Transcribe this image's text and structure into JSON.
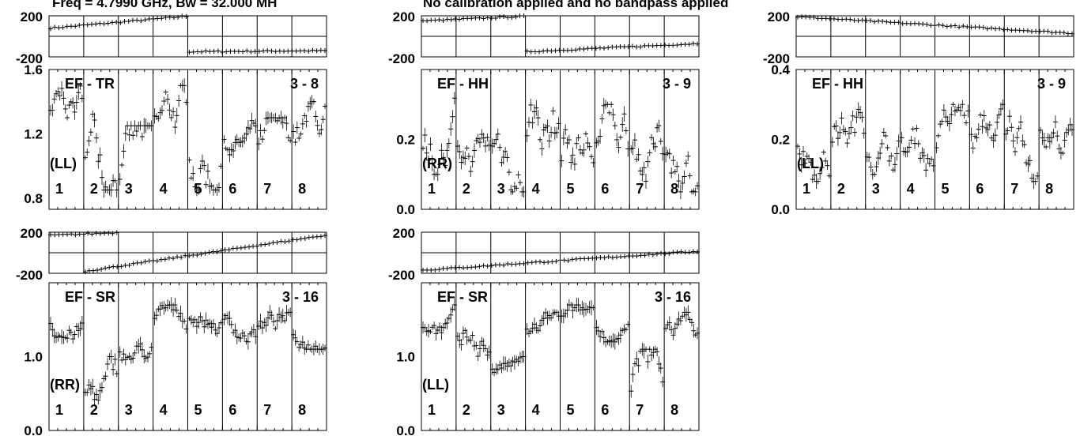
{
  "header": {
    "freq_text": "Freq = 4.7990 GHz, Bw = 32.000 MH",
    "calib_text": "No calibration applied and no bandpass applied"
  },
  "colors": {
    "ink": "#000000",
    "background": "#ffffff"
  },
  "chart_data": [
    {
      "type": "scatter",
      "baseline_label": "EF - TR",
      "baseline_id": "3 - 8",
      "polarization": "(LL)",
      "ir_labels": [
        "1",
        "2",
        "3",
        "4",
        "5",
        "6",
        "7",
        "8"
      ],
      "phase": {
        "yticks": [
          "200",
          "-200"
        ],
        "ylim": [
          -200,
          200
        ],
        "segments": [
          {
            "ir": [
              1,
              4
            ],
            "start": 80,
            "end": 195
          },
          {
            "ir": [
              5,
              8
            ],
            "start": -150,
            "end": -140
          }
        ]
      },
      "amp": {
        "yticks": [
          "1.6",
          "1.2",
          "0.8"
        ],
        "tick_values": [
          1.6,
          1.2,
          0.8
        ],
        "ylim": [
          0.73,
          1.6
        ],
        "ir_ranges": [
          [
            1.15,
            1.5
          ],
          [
            0.85,
            1.5
          ],
          [
            0.75,
            1.25
          ],
          [
            1.0,
            1.5
          ],
          [
            0.85,
            1.45
          ],
          [
            1.05,
            1.3
          ],
          [
            0.9,
            1.3
          ],
          [
            0.95,
            1.4
          ]
        ]
      }
    },
    {
      "type": "scatter",
      "baseline_label": "EF - HH",
      "baseline_id": "3 - 9",
      "polarization": "(RR)",
      "ir_labels": [
        "1",
        "2",
        "3",
        "4",
        "5",
        "6",
        "7",
        "8"
      ],
      "phase": {
        "yticks": [
          "200",
          "-200"
        ],
        "ylim": [
          -200,
          200
        ],
        "segments": [
          {
            "ir": [
              1,
              3
            ],
            "start": 150,
            "end": 195
          },
          {
            "ir": [
              4,
              8
            ],
            "start": -150,
            "end": -70
          }
        ]
      },
      "amp": {
        "yticks": [
          "0.2",
          "0.0"
        ],
        "tick_values": [
          0.2,
          0.0
        ],
        "ylim": [
          0.0,
          0.4
        ],
        "ir_ranges": [
          [
            0.1,
            0.35
          ],
          [
            0.1,
            0.3
          ],
          [
            0.05,
            0.3
          ],
          [
            0.05,
            0.35
          ],
          [
            0.05,
            0.35
          ],
          [
            0.05,
            0.3
          ],
          [
            0.05,
            0.3
          ],
          [
            0.05,
            0.3
          ]
        ]
      }
    },
    {
      "type": "scatter",
      "baseline_label": "EF - HH",
      "baseline_id": "3 - 9",
      "polarization": "(LL)",
      "ir_labels": [
        "1",
        "2",
        "3",
        "4",
        "5",
        "6",
        "7",
        "8"
      ],
      "phase": {
        "yticks": [
          "200",
          "-200"
        ],
        "ylim": [
          -200,
          200
        ],
        "segments": [
          {
            "ir": [
              1,
              8
            ],
            "start": 190,
            "end": 30
          }
        ]
      },
      "amp": {
        "yticks": [
          "0.4",
          "0.2",
          "0.0"
        ],
        "tick_values": [
          0.4,
          0.2,
          0.0
        ],
        "ylim": [
          0.0,
          0.4
        ],
        "ir_ranges": [
          [
            0.08,
            0.3
          ],
          [
            0.12,
            0.33
          ],
          [
            0.1,
            0.28
          ],
          [
            0.1,
            0.3
          ],
          [
            0.12,
            0.3
          ],
          [
            0.1,
            0.3
          ],
          [
            0.08,
            0.32
          ],
          [
            0.1,
            0.28
          ]
        ]
      }
    },
    {
      "type": "scatter",
      "baseline_label": "EF - SR",
      "baseline_id": "3 - 16",
      "polarization": "(RR)",
      "ir_labels": [
        "1",
        "2",
        "3",
        "4",
        "5",
        "6",
        "7",
        "8"
      ],
      "phase": {
        "yticks": [
          "200",
          "-200"
        ],
        "ylim": [
          -200,
          200
        ],
        "segments": [
          {
            "ir": [
              1,
              2
            ],
            "start": 170,
            "end": 195
          },
          {
            "ir": [
              2,
              8
            ],
            "start": -180,
            "end": 170
          }
        ]
      },
      "amp": {
        "yticks": [
          "1.0",
          "0.0"
        ],
        "tick_values": [
          1.0,
          0.0
        ],
        "ylim": [
          0.0,
          2.0
        ],
        "ir_ranges": [
          [
            1.2,
            1.7
          ],
          [
            0.1,
            1.0
          ],
          [
            0.8,
            1.3
          ],
          [
            1.2,
            1.7
          ],
          [
            1.3,
            1.7
          ],
          [
            1.2,
            1.7
          ],
          [
            1.1,
            1.6
          ],
          [
            1.1,
            1.5
          ]
        ]
      }
    },
    {
      "type": "scatter",
      "baseline_label": "EF - SR",
      "baseline_id": "3 - 16",
      "polarization": "(LL)",
      "ir_labels": [
        "1",
        "2",
        "3",
        "4",
        "5",
        "6",
        "7",
        "8"
      ],
      "phase": {
        "yticks": [
          "200",
          "-200"
        ],
        "ylim": [
          -200,
          200
        ],
        "segments": [
          {
            "ir": [
              1,
              8
            ],
            "start": -170,
            "end": 15
          }
        ]
      },
      "amp": {
        "yticks": [
          "1.0",
          "0.0"
        ],
        "tick_values": [
          1.0,
          0.0
        ],
        "ylim": [
          0.0,
          2.0
        ],
        "ir_ranges": [
          [
            1.2,
            1.7
          ],
          [
            0.8,
            1.5
          ],
          [
            0.7,
            1.0
          ],
          [
            1.2,
            1.6
          ],
          [
            1.3,
            1.7
          ],
          [
            1.2,
            1.6
          ],
          [
            0.05,
            1.1
          ],
          [
            1.1,
            1.6
          ]
        ]
      }
    }
  ]
}
